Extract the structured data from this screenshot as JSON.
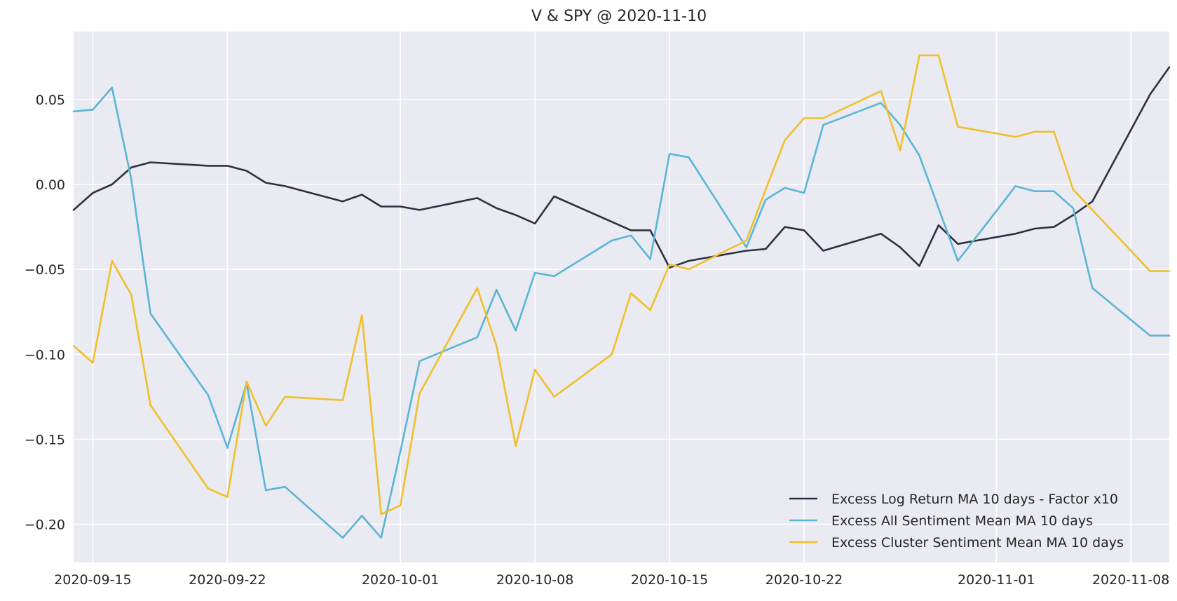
{
  "chart_data": {
    "type": "line",
    "title": "V & SPY @ 2020-11-10",
    "xlabel": "",
    "ylabel": "",
    "x_range": [
      "2020-09-14",
      "2020-11-10"
    ],
    "ylim": [
      -0.2225,
      0.09
    ],
    "x_ticks": [
      "2020-09-15",
      "2020-09-22",
      "2020-10-01",
      "2020-10-08",
      "2020-10-15",
      "2020-10-22",
      "2020-11-01",
      "2020-11-08"
    ],
    "y_ticks": [
      {
        "value": 0.05,
        "label": "0.05"
      },
      {
        "value": 0.0,
        "label": "0.00"
      },
      {
        "value": -0.05,
        "label": "−0.05"
      },
      {
        "value": -0.1,
        "label": "−0.10"
      },
      {
        "value": -0.15,
        "label": "−0.15"
      },
      {
        "value": -0.2,
        "label": "−0.20"
      }
    ],
    "grid": true,
    "legend_position": "lower-right",
    "background": "#eaeaf2",
    "series": [
      {
        "name": "Excess Log Return MA 10 days - Factor x10",
        "color": "#2d3142",
        "points": [
          [
            "2020-09-14",
            -0.015
          ],
          [
            "2020-09-15",
            -0.005
          ],
          [
            "2020-09-16",
            0.0
          ],
          [
            "2020-09-17",
            0.01
          ],
          [
            "2020-09-18",
            0.013
          ],
          [
            "2020-09-21",
            0.011
          ],
          [
            "2020-09-22",
            0.011
          ],
          [
            "2020-09-23",
            0.008
          ],
          [
            "2020-09-24",
            0.001
          ],
          [
            "2020-09-25",
            -0.001
          ],
          [
            "2020-09-28",
            -0.01
          ],
          [
            "2020-09-29",
            -0.006
          ],
          [
            "2020-09-30",
            -0.013
          ],
          [
            "2020-10-01",
            -0.013
          ],
          [
            "2020-10-02",
            -0.015
          ],
          [
            "2020-10-05",
            -0.008
          ],
          [
            "2020-10-06",
            -0.014
          ],
          [
            "2020-10-07",
            -0.018
          ],
          [
            "2020-10-08",
            -0.023
          ],
          [
            "2020-10-09",
            -0.007
          ],
          [
            "2020-10-12",
            -0.022
          ],
          [
            "2020-10-13",
            -0.027
          ],
          [
            "2020-10-14",
            -0.027
          ],
          [
            "2020-10-15",
            -0.049
          ],
          [
            "2020-10-16",
            -0.045
          ],
          [
            "2020-10-19",
            -0.039
          ],
          [
            "2020-10-20",
            -0.038
          ],
          [
            "2020-10-21",
            -0.025
          ],
          [
            "2020-10-22",
            -0.027
          ],
          [
            "2020-10-23",
            -0.039
          ],
          [
            "2020-10-26",
            -0.029
          ],
          [
            "2020-10-27",
            -0.037
          ],
          [
            "2020-10-28",
            -0.048
          ],
          [
            "2020-10-29",
            -0.024
          ],
          [
            "2020-10-30",
            -0.035
          ],
          [
            "2020-11-02",
            -0.029
          ],
          [
            "2020-11-03",
            -0.026
          ],
          [
            "2020-11-04",
            -0.025
          ],
          [
            "2020-11-05",
            -0.018
          ],
          [
            "2020-11-06",
            -0.01
          ],
          [
            "2020-11-09",
            0.053
          ],
          [
            "2020-11-10",
            0.069
          ]
        ]
      },
      {
        "name": "Excess All Sentiment Mean MA 10 days",
        "color": "#5bb5d5",
        "points": [
          [
            "2020-09-14",
            0.043
          ],
          [
            "2020-09-15",
            0.044
          ],
          [
            "2020-09-16",
            0.057
          ],
          [
            "2020-09-17",
            0.003
          ],
          [
            "2020-09-18",
            -0.076
          ],
          [
            "2020-09-21",
            -0.124
          ],
          [
            "2020-09-22",
            -0.155
          ],
          [
            "2020-09-23",
            -0.117
          ],
          [
            "2020-09-24",
            -0.18
          ],
          [
            "2020-09-25",
            -0.178
          ],
          [
            "2020-09-28",
            -0.208
          ],
          [
            "2020-09-29",
            -0.195
          ],
          [
            "2020-09-30",
            -0.208
          ],
          [
            "2020-10-01",
            -0.157
          ],
          [
            "2020-10-02",
            -0.104
          ],
          [
            "2020-10-05",
            -0.09
          ],
          [
            "2020-10-06",
            -0.062
          ],
          [
            "2020-10-07",
            -0.086
          ],
          [
            "2020-10-08",
            -0.052
          ],
          [
            "2020-10-09",
            -0.054
          ],
          [
            "2020-10-12",
            -0.033
          ],
          [
            "2020-10-13",
            -0.03
          ],
          [
            "2020-10-14",
            -0.044
          ],
          [
            "2020-10-15",
            0.018
          ],
          [
            "2020-10-16",
            0.016
          ],
          [
            "2020-10-19",
            -0.037
          ],
          [
            "2020-10-20",
            -0.009
          ],
          [
            "2020-10-21",
            -0.002
          ],
          [
            "2020-10-22",
            -0.005
          ],
          [
            "2020-10-23",
            0.035
          ],
          [
            "2020-10-26",
            0.048
          ],
          [
            "2020-10-27",
            0.035
          ],
          [
            "2020-10-28",
            0.017
          ],
          [
            "2020-10-29",
            -0.014
          ],
          [
            "2020-10-30",
            -0.045
          ],
          [
            "2020-11-02",
            -0.001
          ],
          [
            "2020-11-03",
            -0.004
          ],
          [
            "2020-11-04",
            -0.004
          ],
          [
            "2020-11-05",
            -0.014
          ],
          [
            "2020-11-06",
            -0.061
          ],
          [
            "2020-11-09",
            -0.089
          ],
          [
            "2020-11-10",
            -0.089
          ]
        ]
      },
      {
        "name": "Excess Cluster Sentiment Mean MA 10 days",
        "color": "#f0c02a",
        "points": [
          [
            "2020-09-14",
            -0.095
          ],
          [
            "2020-09-15",
            -0.105
          ],
          [
            "2020-09-16",
            -0.045
          ],
          [
            "2020-09-17",
            -0.065
          ],
          [
            "2020-09-18",
            -0.13
          ],
          [
            "2020-09-21",
            -0.179
          ],
          [
            "2020-09-22",
            -0.184
          ],
          [
            "2020-09-23",
            -0.116
          ],
          [
            "2020-09-24",
            -0.142
          ],
          [
            "2020-09-25",
            -0.125
          ],
          [
            "2020-09-28",
            -0.127
          ],
          [
            "2020-09-29",
            -0.077
          ],
          [
            "2020-09-30",
            -0.194
          ],
          [
            "2020-10-01",
            -0.189
          ],
          [
            "2020-10-02",
            -0.123
          ],
          [
            "2020-10-05",
            -0.061
          ],
          [
            "2020-10-06",
            -0.095
          ],
          [
            "2020-10-07",
            -0.154
          ],
          [
            "2020-10-08",
            -0.109
          ],
          [
            "2020-10-09",
            -0.125
          ],
          [
            "2020-10-12",
            -0.1
          ],
          [
            "2020-10-13",
            -0.064
          ],
          [
            "2020-10-14",
            -0.074
          ],
          [
            "2020-10-15",
            -0.047
          ],
          [
            "2020-10-16",
            -0.05
          ],
          [
            "2020-10-19",
            -0.033
          ],
          [
            "2020-10-20",
            -0.003
          ],
          [
            "2020-10-21",
            0.026
          ],
          [
            "2020-10-22",
            0.039
          ],
          [
            "2020-10-23",
            0.039
          ],
          [
            "2020-10-26",
            0.055
          ],
          [
            "2020-10-27",
            0.02
          ],
          [
            "2020-10-28",
            0.076
          ],
          [
            "2020-10-29",
            0.076
          ],
          [
            "2020-10-30",
            0.034
          ],
          [
            "2020-11-02",
            0.028
          ],
          [
            "2020-11-03",
            0.031
          ],
          [
            "2020-11-04",
            0.031
          ],
          [
            "2020-11-05",
            -0.003
          ],
          [
            "2020-11-06",
            -0.015
          ],
          [
            "2020-11-09",
            -0.051
          ],
          [
            "2020-11-10",
            -0.051
          ]
        ]
      }
    ]
  }
}
